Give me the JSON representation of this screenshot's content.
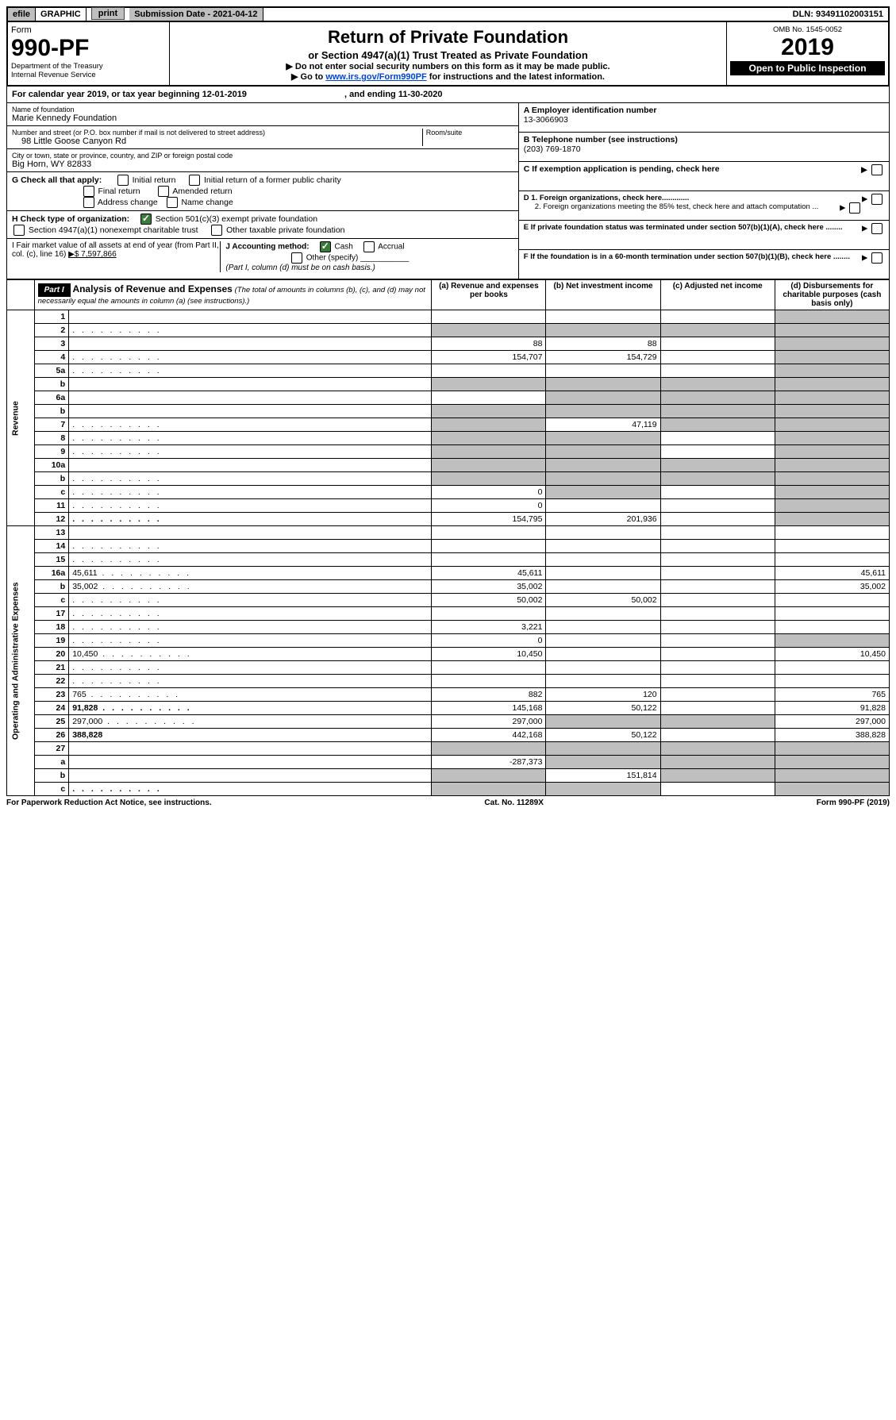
{
  "top": {
    "efile": "efile",
    "graphic": "GRAPHIC",
    "print": "print",
    "sub_date_label": "Submission Date - 2021-04-12",
    "dln": "DLN: 93491102003151"
  },
  "header": {
    "form_word": "Form",
    "form_no": "990-PF",
    "dept": "Department of the Treasury",
    "irs": "Internal Revenue Service",
    "title": "Return of Private Foundation",
    "subtitle": "or Section 4947(a)(1) Trust Treated as Private Foundation",
    "note1": "▶ Do not enter social security numbers on this form as it may be made public.",
    "note2_pre": "▶ Go to ",
    "note2_link": "www.irs.gov/Form990PF",
    "note2_post": " for instructions and the latest information.",
    "omb": "OMB No. 1545-0052",
    "year": "2019",
    "open": "Open to Public Inspection"
  },
  "cal": {
    "text_pre": "For calendar year 2019, or tax year beginning ",
    "begin": "12-01-2019",
    "mid": " , and ending ",
    "end": "11-30-2020"
  },
  "entity": {
    "name_lbl": "Name of foundation",
    "name": "Marie Kennedy Foundation",
    "addr_lbl": "Number and street (or P.O. box number if mail is not delivered to street address)",
    "room_lbl": "Room/suite",
    "addr": "98 Little Goose Canyon Rd",
    "city_lbl": "City or town, state or province, country, and ZIP or foreign postal code",
    "city": "Big Horn, WY  82833",
    "a_lbl": "A Employer identification number",
    "a_val": "13-3066903",
    "b_lbl": "B Telephone number (see instructions)",
    "b_val": "(203) 769-1870",
    "c_lbl": "C If exemption application is pending, check here",
    "d1": "D 1. Foreign organizations, check here.............",
    "d2": "2. Foreign organizations meeting the 85% test, check here and attach computation ...",
    "e_lbl": "E  If private foundation status was terminated under section 507(b)(1)(A), check here ........",
    "f_lbl": "F  If the foundation is in a 60-month termination under section 507(b)(1)(B), check here ........"
  },
  "g": {
    "label": "G Check all that apply:",
    "initial": "Initial return",
    "initial_former": "Initial return of a former public charity",
    "final": "Final return",
    "amended": "Amended return",
    "addr_change": "Address change",
    "name_change": "Name change"
  },
  "h": {
    "label": "H Check type of organization:",
    "c3": "Section 501(c)(3) exempt private foundation",
    "trust": "Section 4947(a)(1) nonexempt charitable trust",
    "other_tax": "Other taxable private foundation"
  },
  "i": {
    "label": "I Fair market value of all assets at end of year (from Part II, col. (c), line 16)",
    "amount": "▶$  7,597,866"
  },
  "j": {
    "label": "J Accounting method:",
    "cash": "Cash",
    "accrual": "Accrual",
    "other": "Other (specify)",
    "note": "(Part I, column (d) must be on cash basis.)"
  },
  "part1": {
    "hdr": "Part I",
    "title": "Analysis of Revenue and Expenses",
    "title_note": "(The total of amounts in columns (b), (c), and (d) may not necessarily equal the amounts in column (a) (see instructions).)",
    "col_a": "(a)  Revenue and expenses per books",
    "col_b": "(b)  Net investment income",
    "col_c": "(c)  Adjusted net income",
    "col_d": "(d)  Disbursements for charitable purposes (cash basis only)",
    "section_rev": "Revenue",
    "section_exp": "Operating and Administrative Expenses"
  },
  "lines": [
    {
      "n": "1",
      "d": "",
      "a": "",
      "b": "",
      "c": "",
      "d_shade": true
    },
    {
      "n": "2",
      "d": "",
      "a": "",
      "b": "",
      "c": "",
      "a_shade": true,
      "b_shade": true,
      "c_shade": true,
      "d_shade": true,
      "dotted": true
    },
    {
      "n": "3",
      "d": "",
      "a": "88",
      "b": "88",
      "c": "",
      "d_shade": true
    },
    {
      "n": "4",
      "d": "",
      "a": "154,707",
      "b": "154,729",
      "c": "",
      "d_shade": true,
      "dotted": true
    },
    {
      "n": "5a",
      "d": "",
      "a": "",
      "b": "",
      "c": "",
      "d_shade": true,
      "dotted": true
    },
    {
      "n": "b",
      "d": "",
      "a": "",
      "b": "",
      "c": "",
      "a_shade": true,
      "b_shade": true,
      "c_shade": true,
      "d_shade": true
    },
    {
      "n": "6a",
      "d": "",
      "a": "",
      "b": "",
      "c": "",
      "b_shade": true,
      "c_shade": true,
      "d_shade": true
    },
    {
      "n": "b",
      "d": "",
      "a": "",
      "b": "",
      "c": "",
      "a_shade": true,
      "b_shade": true,
      "c_shade": true,
      "d_shade": true
    },
    {
      "n": "7",
      "d": "",
      "a": "",
      "b": "47,119",
      "c": "",
      "a_shade": true,
      "c_shade": true,
      "d_shade": true,
      "dotted": true
    },
    {
      "n": "8",
      "d": "",
      "a": "",
      "b": "",
      "c": "",
      "a_shade": true,
      "b_shade": true,
      "d_shade": true,
      "dotted": true
    },
    {
      "n": "9",
      "d": "",
      "a": "",
      "b": "",
      "c": "",
      "a_shade": true,
      "b_shade": true,
      "d_shade": true,
      "dotted": true
    },
    {
      "n": "10a",
      "d": "",
      "a": "",
      "b": "",
      "c": "",
      "a_shade": true,
      "b_shade": true,
      "c_shade": true,
      "d_shade": true
    },
    {
      "n": "b",
      "d": "",
      "a": "",
      "b": "",
      "c": "",
      "a_shade": true,
      "b_shade": true,
      "c_shade": true,
      "d_shade": true,
      "dotted": true
    },
    {
      "n": "c",
      "d": "",
      "a": "0",
      "b": "",
      "c": "",
      "b_shade": true,
      "d_shade": true,
      "dotted": true
    },
    {
      "n": "11",
      "d": "",
      "a": "0",
      "b": "",
      "c": "",
      "d_shade": true,
      "dotted": true
    },
    {
      "n": "12",
      "d": "",
      "a": "154,795",
      "b": "201,936",
      "c": "",
      "d_shade": true,
      "bold": true,
      "dotted": true
    },
    {
      "n": "13",
      "d": "",
      "a": "",
      "b": "",
      "c": ""
    },
    {
      "n": "14",
      "d": "",
      "a": "",
      "b": "",
      "c": "",
      "dotted": true
    },
    {
      "n": "15",
      "d": "",
      "a": "",
      "b": "",
      "c": "",
      "dotted": true
    },
    {
      "n": "16a",
      "d": "45,611",
      "a": "45,611",
      "b": "",
      "c": "",
      "dotted": true
    },
    {
      "n": "b",
      "d": "35,002",
      "a": "35,002",
      "b": "",
      "c": "",
      "dotted": true
    },
    {
      "n": "c",
      "d": "",
      "a": "50,002",
      "b": "50,002",
      "c": "",
      "dotted": true
    },
    {
      "n": "17",
      "d": "",
      "a": "",
      "b": "",
      "c": "",
      "dotted": true
    },
    {
      "n": "18",
      "d": "",
      "a": "3,221",
      "b": "",
      "c": "",
      "dotted": true
    },
    {
      "n": "19",
      "d": "",
      "a": "0",
      "b": "",
      "c": "",
      "d_shade": true,
      "dotted": true
    },
    {
      "n": "20",
      "d": "10,450",
      "a": "10,450",
      "b": "",
      "c": "",
      "dotted": true
    },
    {
      "n": "21",
      "d": "",
      "a": "",
      "b": "",
      "c": "",
      "dotted": true
    },
    {
      "n": "22",
      "d": "",
      "a": "",
      "b": "",
      "c": "",
      "dotted": true
    },
    {
      "n": "23",
      "d": "765",
      "a": "882",
      "b": "120",
      "c": "",
      "dotted": true
    },
    {
      "n": "24",
      "d": "91,828",
      "a": "145,168",
      "b": "50,122",
      "c": "",
      "bold": true,
      "dotted": true
    },
    {
      "n": "25",
      "d": "297,000",
      "a": "297,000",
      "b": "",
      "c": "",
      "b_shade": true,
      "c_shade": true,
      "dotted": true
    },
    {
      "n": "26",
      "d": "388,828",
      "a": "442,168",
      "b": "50,122",
      "c": "",
      "bold": true
    },
    {
      "n": "27",
      "d": "",
      "a": "",
      "b": "",
      "c": "",
      "a_shade": true,
      "b_shade": true,
      "c_shade": true,
      "d_shade": true
    },
    {
      "n": "a",
      "d": "",
      "a": "-287,373",
      "b": "",
      "c": "",
      "b_shade": true,
      "c_shade": true,
      "d_shade": true,
      "bold": true
    },
    {
      "n": "b",
      "d": "",
      "a": "",
      "b": "151,814",
      "c": "",
      "a_shade": true,
      "c_shade": true,
      "d_shade": true,
      "bold": true
    },
    {
      "n": "c",
      "d": "",
      "a": "",
      "b": "",
      "c": "",
      "a_shade": true,
      "b_shade": true,
      "d_shade": true,
      "bold": true,
      "dotted": true
    }
  ],
  "footer": {
    "left": "For Paperwork Reduction Act Notice, see instructions.",
    "mid": "Cat. No. 11289X",
    "right": "Form 990-PF (2019)"
  }
}
